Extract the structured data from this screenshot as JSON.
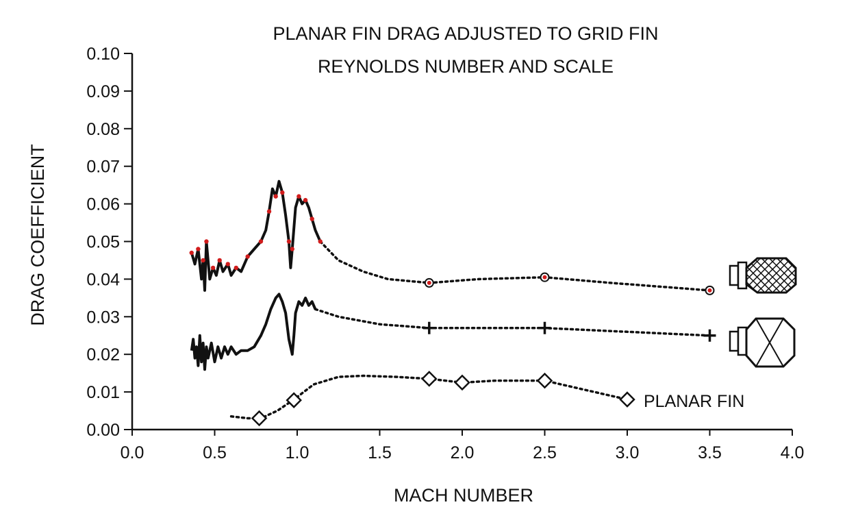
{
  "chart_data": {
    "type": "line",
    "title_lines": [
      "PLANAR FIN DRAG ADJUSTED TO GRID FIN",
      "REYNOLDS NUMBER AND SCALE"
    ],
    "xlabel": "MACH NUMBER",
    "ylabel": "DRAG COEFFICIENT",
    "xlim": [
      0.0,
      4.0
    ],
    "ylim": [
      0.0,
      0.1
    ],
    "x_ticks": [
      "0.0",
      "0.5",
      "1.0",
      "1.5",
      "2.0",
      "2.5",
      "3.0",
      "3.5",
      "4.0"
    ],
    "y_ticks": [
      "0.00",
      "0.01",
      "0.02",
      "0.03",
      "0.04",
      "0.05",
      "0.06",
      "0.07",
      "0.08",
      "0.09",
      "0.10"
    ],
    "grid": false,
    "series": [
      {
        "marker": "circle-red",
        "icon": "lattice-grid-fin-icon",
        "measured": [
          [
            0.36,
            0.047
          ],
          [
            0.38,
            0.044
          ],
          [
            0.4,
            0.048
          ],
          [
            0.42,
            0.04
          ],
          [
            0.43,
            0.045
          ],
          [
            0.44,
            0.037
          ],
          [
            0.45,
            0.05
          ],
          [
            0.47,
            0.04
          ],
          [
            0.49,
            0.043
          ],
          [
            0.51,
            0.041
          ],
          [
            0.53,
            0.045
          ],
          [
            0.55,
            0.042
          ],
          [
            0.58,
            0.044
          ],
          [
            0.6,
            0.041
          ],
          [
            0.63,
            0.043
          ],
          [
            0.66,
            0.042
          ],
          [
            0.7,
            0.046
          ],
          [
            0.74,
            0.048
          ],
          [
            0.78,
            0.05
          ],
          [
            0.81,
            0.053
          ],
          [
            0.83,
            0.058
          ],
          [
            0.85,
            0.064
          ],
          [
            0.87,
            0.062
          ],
          [
            0.89,
            0.066
          ],
          [
            0.91,
            0.063
          ],
          [
            0.93,
            0.057
          ],
          [
            0.95,
            0.05
          ],
          [
            0.96,
            0.043
          ],
          [
            0.97,
            0.048
          ],
          [
            0.99,
            0.059
          ],
          [
            1.01,
            0.062
          ],
          [
            1.03,
            0.06
          ],
          [
            1.05,
            0.061
          ],
          [
            1.07,
            0.059
          ],
          [
            1.09,
            0.056
          ],
          [
            1.11,
            0.053
          ],
          [
            1.14,
            0.05
          ]
        ],
        "fit": [
          [
            1.14,
            0.05
          ],
          [
            1.25,
            0.045
          ],
          [
            1.4,
            0.042
          ],
          [
            1.55,
            0.04
          ],
          [
            1.8,
            0.039
          ],
          [
            2.1,
            0.04
          ],
          [
            2.5,
            0.0405
          ],
          [
            2.9,
            0.039
          ],
          [
            3.2,
            0.038
          ],
          [
            3.5,
            0.037
          ]
        ],
        "points": [
          [
            1.8,
            0.039
          ],
          [
            2.5,
            0.0405
          ],
          [
            3.5,
            0.037
          ]
        ]
      },
      {
        "marker": "plus",
        "icon": "open-grid-fin-icon",
        "measured": [
          [
            0.36,
            0.021
          ],
          [
            0.37,
            0.024
          ],
          [
            0.38,
            0.019
          ],
          [
            0.39,
            0.022
          ],
          [
            0.4,
            0.017
          ],
          [
            0.41,
            0.025
          ],
          [
            0.42,
            0.018
          ],
          [
            0.43,
            0.023
          ],
          [
            0.44,
            0.016
          ],
          [
            0.45,
            0.022
          ],
          [
            0.46,
            0.019
          ],
          [
            0.48,
            0.023
          ],
          [
            0.5,
            0.018
          ],
          [
            0.52,
            0.022
          ],
          [
            0.54,
            0.019
          ],
          [
            0.56,
            0.022
          ],
          [
            0.58,
            0.02
          ],
          [
            0.6,
            0.022
          ],
          [
            0.63,
            0.02
          ],
          [
            0.66,
            0.021
          ],
          [
            0.7,
            0.021
          ],
          [
            0.74,
            0.022
          ],
          [
            0.78,
            0.025
          ],
          [
            0.81,
            0.028
          ],
          [
            0.84,
            0.032
          ],
          [
            0.87,
            0.035
          ],
          [
            0.89,
            0.036
          ],
          [
            0.91,
            0.034
          ],
          [
            0.93,
            0.031
          ],
          [
            0.95,
            0.024
          ],
          [
            0.97,
            0.02
          ],
          [
            0.98,
            0.025
          ],
          [
            0.99,
            0.031
          ],
          [
            1.01,
            0.034
          ],
          [
            1.03,
            0.033
          ],
          [
            1.05,
            0.035
          ],
          [
            1.07,
            0.033
          ],
          [
            1.09,
            0.034
          ],
          [
            1.11,
            0.032
          ]
        ],
        "fit": [
          [
            1.11,
            0.032
          ],
          [
            1.25,
            0.03
          ],
          [
            1.5,
            0.028
          ],
          [
            1.8,
            0.027
          ],
          [
            2.2,
            0.027
          ],
          [
            2.5,
            0.027
          ],
          [
            3.0,
            0.026
          ],
          [
            3.5,
            0.025
          ]
        ],
        "points": [
          [
            1.8,
            0.027
          ],
          [
            2.5,
            0.027
          ],
          [
            3.5,
            0.025
          ]
        ]
      },
      {
        "name": "PLANAR FIN",
        "marker": "diamond",
        "fit": [
          [
            0.6,
            0.0035
          ],
          [
            0.7,
            0.003
          ],
          [
            0.78,
            0.003
          ],
          [
            0.88,
            0.005
          ],
          [
            0.98,
            0.008
          ],
          [
            1.1,
            0.012
          ],
          [
            1.25,
            0.014
          ],
          [
            1.4,
            0.0143
          ],
          [
            1.6,
            0.014
          ],
          [
            1.8,
            0.0135
          ],
          [
            2.0,
            0.0125
          ],
          [
            2.2,
            0.013
          ],
          [
            2.5,
            0.013
          ],
          [
            2.7,
            0.011
          ],
          [
            3.0,
            0.008
          ]
        ],
        "points": [
          [
            0.77,
            0.003
          ],
          [
            0.98,
            0.0078
          ],
          [
            1.8,
            0.0135
          ],
          [
            2.0,
            0.0125
          ],
          [
            2.5,
            0.013
          ],
          [
            3.0,
            0.008
          ]
        ]
      }
    ]
  }
}
